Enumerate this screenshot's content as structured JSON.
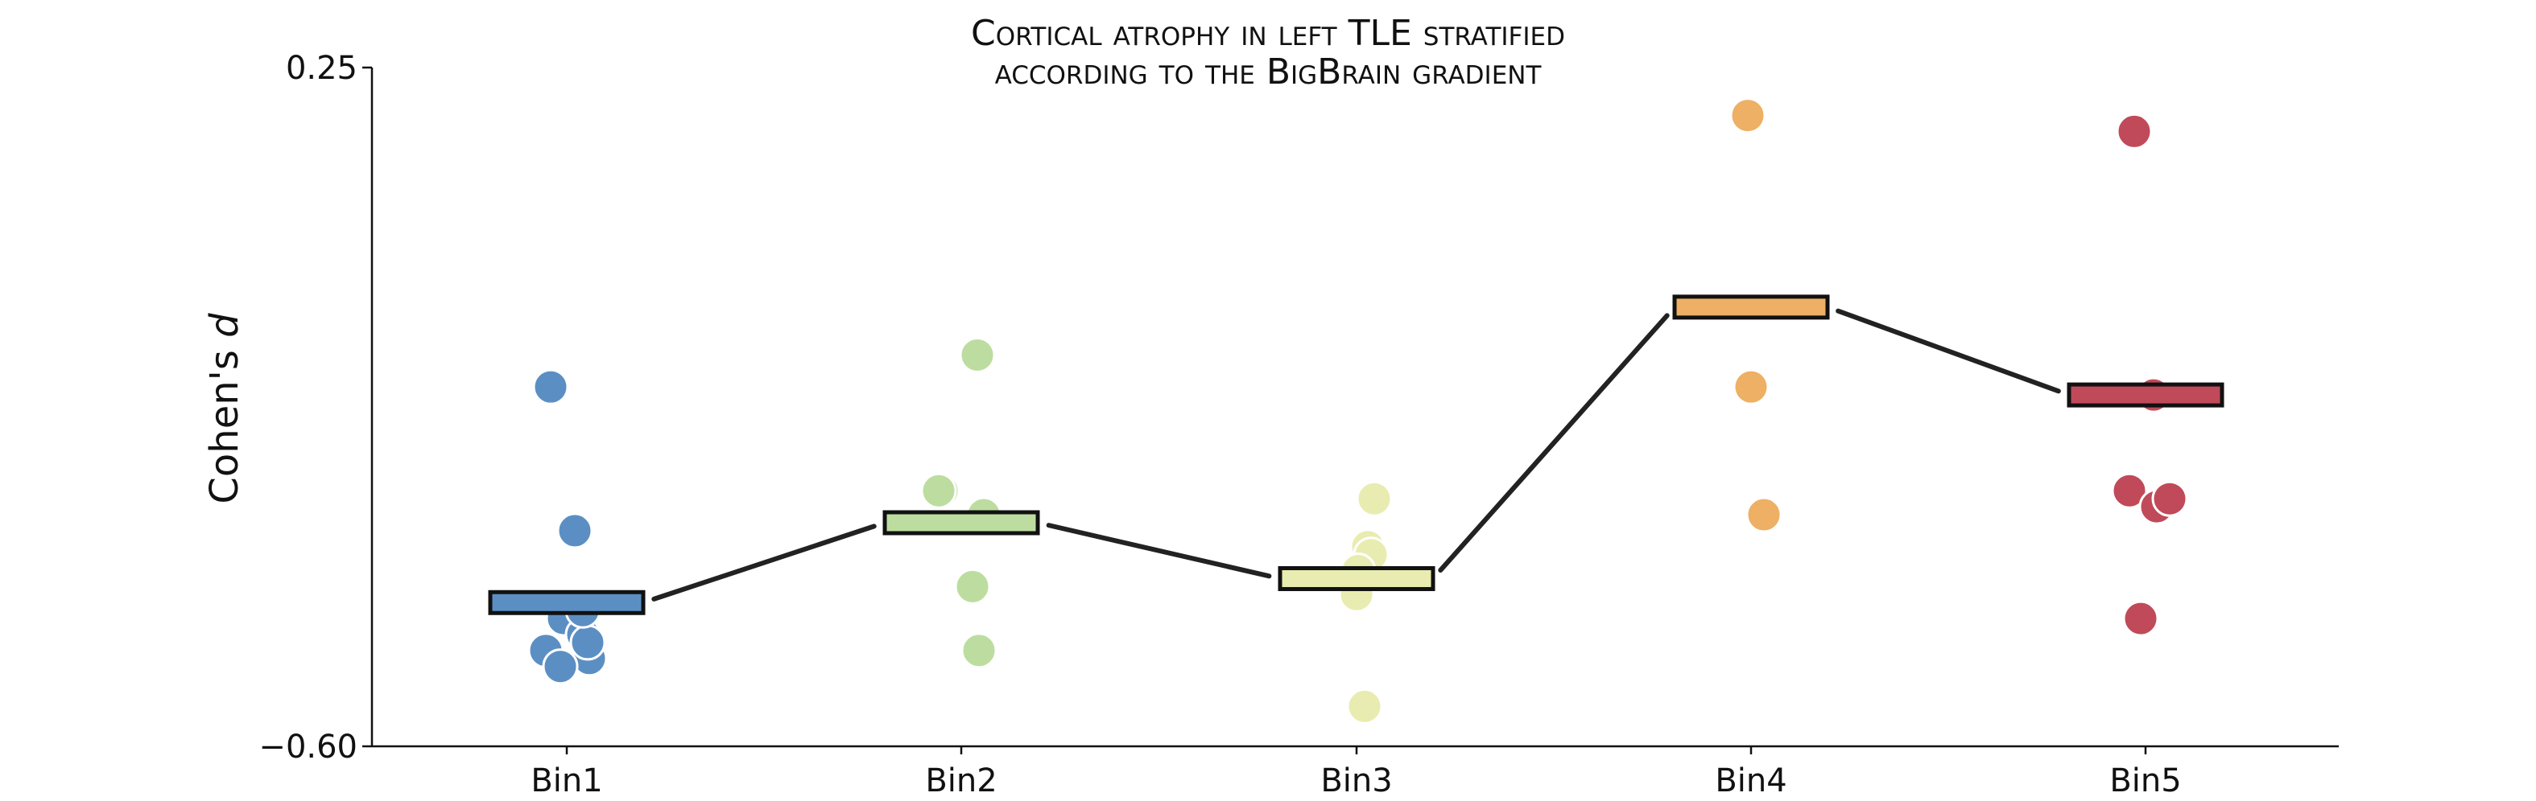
{
  "chart_data": {
    "type": "scatter",
    "title_lines": [
      "Cortical atrophy in left TLE stratified",
      "according to the BigBrain gradient"
    ],
    "xlabel": "",
    "ylabel": "Cohen's",
    "ylabel_italic": "d",
    "ylim": [
      -0.6,
      0.25
    ],
    "ytick_labels": [
      "0.25",
      "−0.60"
    ],
    "categories": [
      "Bin1",
      "Bin2",
      "Bin3",
      "Bin4",
      "Bin5"
    ],
    "colors": [
      "#5b8fc4",
      "#bcdd9f",
      "#e9ecb0",
      "#edb064",
      "#c04a59"
    ],
    "medians": [
      -0.42,
      -0.32,
      -0.39,
      -0.05,
      -0.16
    ],
    "points": [
      [
        -0.15,
        -0.33,
        -0.44,
        -0.46,
        -0.48,
        -0.49,
        -0.47,
        -0.43,
        -0.5
      ],
      [
        -0.11,
        -0.28,
        -0.28,
        -0.31,
        -0.4,
        -0.48
      ],
      [
        -0.29,
        -0.35,
        -0.36,
        -0.38,
        -0.41,
        -0.55
      ],
      [
        0.19,
        -0.15,
        -0.31
      ],
      [
        0.17,
        -0.16,
        -0.28,
        -0.3,
        -0.29,
        -0.44
      ]
    ],
    "jitter": [
      [
        -0.1,
        0.05,
        -0.02,
        0.1,
        -0.13,
        0.14,
        0.13,
        0.1,
        -0.04
      ],
      [
        0.1,
        -0.12,
        -0.14,
        0.14,
        0.07,
        0.11
      ],
      [
        0.11,
        0.07,
        0.09,
        0.01,
        0.0,
        0.05
      ],
      [
        -0.02,
        0.0,
        0.08
      ],
      [
        -0.07,
        0.05,
        -0.1,
        0.07,
        0.15,
        -0.03
      ]
    ],
    "grid": false,
    "legend": "none"
  }
}
